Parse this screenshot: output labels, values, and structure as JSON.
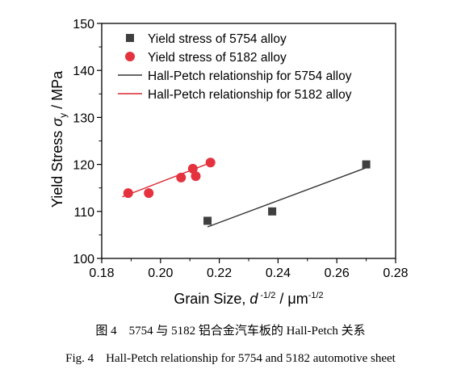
{
  "chart_data": {
    "type": "scatter",
    "xlim": [
      0.18,
      0.28
    ],
    "ylim": [
      100,
      150
    ],
    "xticks": [
      "0.18",
      "0.20",
      "0.22",
      "0.24",
      "0.26",
      "0.28"
    ],
    "yticks": [
      "100",
      "110",
      "120",
      "130",
      "140",
      "150"
    ],
    "grid": false,
    "legend": "top-left",
    "xlabel": {
      "prefix": "Grain Size, ",
      "var": "d",
      "var_sup": "-1/2",
      "unit": " / μm",
      "unit_sup": "-1/2"
    },
    "ylabel": {
      "prefix": "Yield Stress ",
      "var": "σ",
      "var_sub": "y",
      "unit": " / MPa"
    },
    "series": [
      {
        "name": "Yield stress of 5754 alloy",
        "kind": "marker",
        "marker": "square",
        "color": "#3f3f3f",
        "points": [
          [
            0.216,
            108.0
          ],
          [
            0.238,
            110.0
          ],
          [
            0.27,
            120.0
          ]
        ]
      },
      {
        "name": "Yield stress of 5182 alloy",
        "kind": "marker",
        "marker": "circle",
        "color": "#e5323f",
        "points": [
          [
            0.189,
            113.9
          ],
          [
            0.196,
            113.9
          ],
          [
            0.207,
            117.2
          ],
          [
            0.211,
            119.1
          ],
          [
            0.212,
            117.5
          ],
          [
            0.217,
            120.4
          ]
        ]
      },
      {
        "name": "Hall-Petch relationship for 5754 alloy",
        "kind": "line",
        "color": "#333333",
        "points": [
          [
            0.216,
            106.7
          ],
          [
            0.27,
            119.3
          ]
        ]
      },
      {
        "name": "Hall-Petch relationship for 5182 alloy",
        "kind": "line",
        "color": "#d9262f",
        "points": [
          [
            0.187,
            113.1
          ],
          [
            0.218,
            120.6
          ]
        ]
      }
    ]
  },
  "figure": {
    "caption_cn": "图 4　5754 与 5182 铝合金汽车板的 Hall-Petch 关系",
    "caption_en": "Fig. 4　Hall-Petch relationship for 5754 and 5182 automotive sheet"
  }
}
